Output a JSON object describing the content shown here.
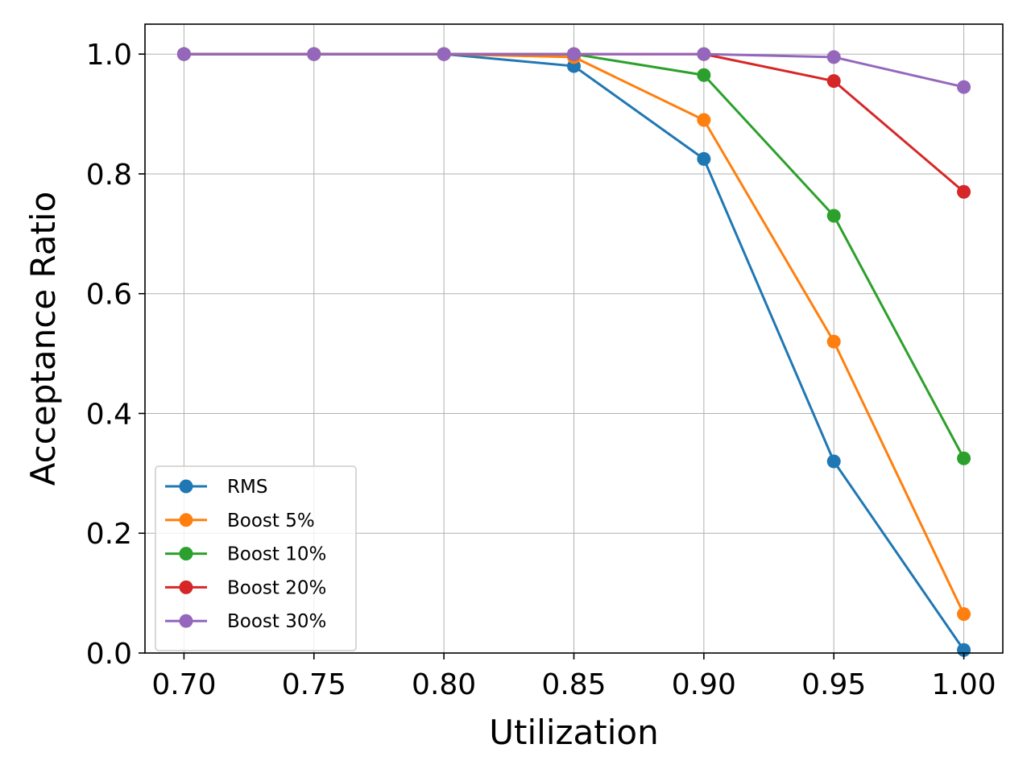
{
  "chart_data": {
    "type": "line",
    "title": "",
    "xlabel": "Utilization",
    "ylabel": "Acceptance Ratio",
    "x": [
      0.7,
      0.75,
      0.8,
      0.85,
      0.9,
      0.95,
      1.0
    ],
    "x_tick_labels": [
      "0.70",
      "0.75",
      "0.80",
      "0.85",
      "0.90",
      "0.95",
      "1.00"
    ],
    "y_ticks": [
      0.0,
      0.2,
      0.4,
      0.6,
      0.8,
      1.0
    ],
    "y_tick_labels": [
      "0.0",
      "0.2",
      "0.4",
      "0.6",
      "0.8",
      "1.0"
    ],
    "xlim": [
      0.685,
      1.015
    ],
    "ylim": [
      0.0,
      1.05
    ],
    "grid": true,
    "legend_position": "lower-left",
    "series": [
      {
        "name": "RMS",
        "color": "#1f77b4",
        "values": [
          1.0,
          1.0,
          1.0,
          0.98,
          0.825,
          0.32,
          0.005
        ]
      },
      {
        "name": "Boost 5%",
        "color": "#ff7f0e",
        "values": [
          1.0,
          1.0,
          1.0,
          0.995,
          0.89,
          0.52,
          0.065
        ]
      },
      {
        "name": "Boost 10%",
        "color": "#2ca02c",
        "values": [
          1.0,
          1.0,
          1.0,
          1.0,
          0.965,
          0.73,
          0.325
        ]
      },
      {
        "name": "Boost 20%",
        "color": "#d62728",
        "values": [
          1.0,
          1.0,
          1.0,
          1.0,
          1.0,
          0.955,
          0.77
        ]
      },
      {
        "name": "Boost 30%",
        "color": "#9467bd",
        "values": [
          1.0,
          1.0,
          1.0,
          1.0,
          1.0,
          0.995,
          0.945
        ]
      }
    ]
  }
}
